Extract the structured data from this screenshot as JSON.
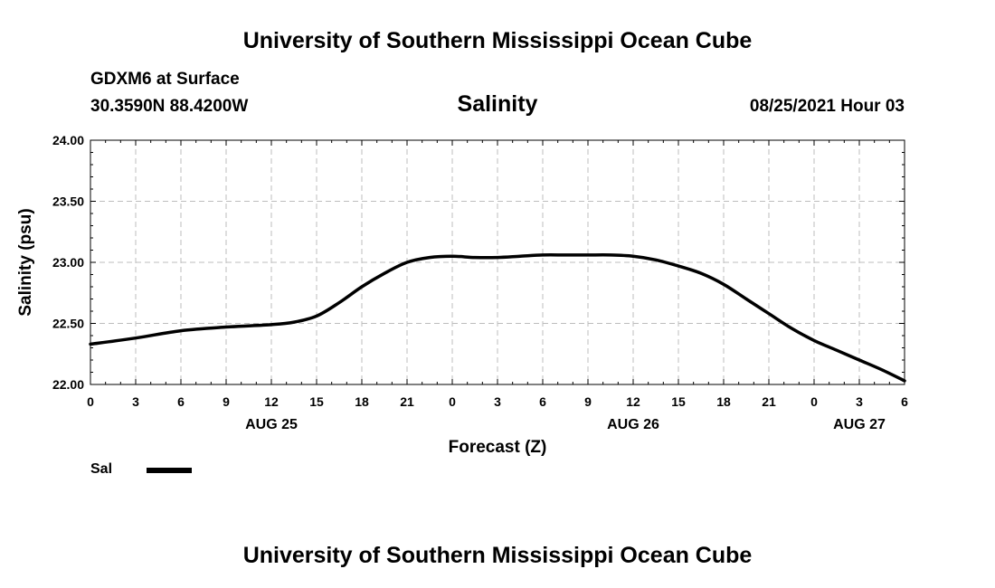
{
  "header": {
    "banner_top": "University of Southern Mississippi Ocean Cube",
    "station": "GDXM6 at Surface",
    "coords": "30.3590N  88.4200W",
    "run_time": "08/25/2021 Hour 03",
    "banner_bottom": "University of Southern Mississippi Ocean Cube"
  },
  "chart_data": {
    "type": "line",
    "title": "Salinity",
    "xlabel": "Forecast (Z)",
    "ylabel": "Salinity (psu)",
    "ylim": [
      22.0,
      24.0
    ],
    "yticks": [
      "22.00",
      "22.50",
      "23.00",
      "23.50",
      "24.00"
    ],
    "xlim": [
      0,
      54
    ],
    "xticks": [
      {
        "x": 0,
        "label": "0"
      },
      {
        "x": 3,
        "label": "3"
      },
      {
        "x": 6,
        "label": "6"
      },
      {
        "x": 9,
        "label": "9"
      },
      {
        "x": 12,
        "label": "12"
      },
      {
        "x": 15,
        "label": "15"
      },
      {
        "x": 18,
        "label": "18"
      },
      {
        "x": 21,
        "label": "21"
      },
      {
        "x": 24,
        "label": "0"
      },
      {
        "x": 27,
        "label": "3"
      },
      {
        "x": 30,
        "label": "6"
      },
      {
        "x": 33,
        "label": "9"
      },
      {
        "x": 36,
        "label": "12"
      },
      {
        "x": 39,
        "label": "15"
      },
      {
        "x": 42,
        "label": "18"
      },
      {
        "x": 45,
        "label": "21"
      },
      {
        "x": 48,
        "label": "0"
      },
      {
        "x": 51,
        "label": "3"
      },
      {
        "x": 54,
        "label": "6"
      }
    ],
    "date_labels": [
      {
        "x": 12,
        "label": "AUG 25"
      },
      {
        "x": 36,
        "label": "AUG 26"
      },
      {
        "x": 51,
        "label": "AUG 27"
      }
    ],
    "grid": true,
    "legend": "bottom-left",
    "series": [
      {
        "name": "Sal",
        "color": "#000000",
        "x": [
          0,
          3,
          6,
          9,
          12,
          13.5,
          15,
          16.5,
          18,
          19.5,
          21,
          22.5,
          24,
          25.5,
          27,
          28.5,
          30,
          31.5,
          33,
          34.5,
          36,
          37.5,
          39,
          40.5,
          42,
          43.5,
          45,
          46.5,
          48,
          49.5,
          51,
          52.5,
          54
        ],
        "values": [
          22.33,
          22.38,
          22.44,
          22.47,
          22.49,
          22.51,
          22.56,
          22.67,
          22.8,
          22.91,
          23.0,
          23.04,
          23.05,
          23.04,
          23.04,
          23.05,
          23.06,
          23.06,
          23.06,
          23.06,
          23.05,
          23.02,
          22.97,
          22.91,
          22.82,
          22.7,
          22.58,
          22.46,
          22.36,
          22.28,
          22.2,
          22.12,
          22.03
        ]
      }
    ]
  }
}
